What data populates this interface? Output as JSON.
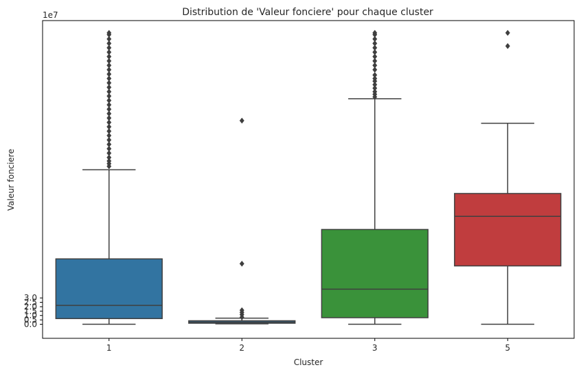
{
  "chart_data": {
    "type": "boxplot",
    "title": "Distribution de 'Valeur fonciere' pour chaque cluster",
    "xlabel": "Cluster",
    "ylabel": "Valeur fonciere",
    "y_scale_label": "1e7",
    "ylim": [
      -1.6,
      34.6
    ],
    "y_ticks": [
      0.0,
      0.5,
      1.0,
      1.5,
      2.0,
      2.5,
      3.0
    ],
    "y_tick_labels": [
      "0.0",
      "0.5",
      "1.0",
      "1.5",
      "2.0",
      "2.5",
      "3.0"
    ],
    "grid": false,
    "legend": "none",
    "categories": [
      "1",
      "2",
      "3",
      "5"
    ],
    "boxes": [
      {
        "category": "1",
        "color": "#3274a1",
        "whisker_low": 0.0,
        "q1": 0.65,
        "median": 2.15,
        "q3": 7.45,
        "whisker_high": 17.6,
        "outliers": [
          18.0,
          18.3,
          18.6,
          19.0,
          19.5,
          20.0,
          20.5,
          21.0,
          21.5,
          22.0,
          22.5,
          23.0,
          23.5,
          24.0,
          24.5,
          25.0,
          25.5,
          26.0,
          26.5,
          27.0,
          27.5,
          28.0,
          28.5,
          29.0,
          29.5,
          30.0,
          30.5,
          31.0,
          31.5,
          32.0,
          32.5,
          33.0,
          33.2
        ]
      },
      {
        "category": "2",
        "color": "#3274a1",
        "whisker_low": 0.05,
        "q1": 0.12,
        "median": 0.25,
        "q3": 0.4,
        "whisker_high": 0.7,
        "outliers": [
          0.8,
          1.1,
          1.35,
          1.6,
          6.9,
          23.2
        ]
      },
      {
        "category": "3",
        "color": "#3a923a",
        "whisker_low": 0.0,
        "q1": 0.75,
        "median": 4.0,
        "q3": 10.8,
        "whisker_high": 25.7,
        "outliers": [
          25.9,
          26.2,
          26.5,
          26.9,
          27.3,
          27.7,
          28.0,
          28.4,
          29.0,
          29.5,
          30.0,
          30.5,
          31.0,
          31.5,
          32.0,
          32.5,
          33.0,
          33.2
        ]
      },
      {
        "category": "5",
        "color": "#c03d3e",
        "whisker_low": 0.0,
        "q1": 6.65,
        "median": 12.3,
        "q3": 14.9,
        "whisker_high": 22.9,
        "outliers": [
          31.7,
          33.2
        ]
      }
    ]
  }
}
